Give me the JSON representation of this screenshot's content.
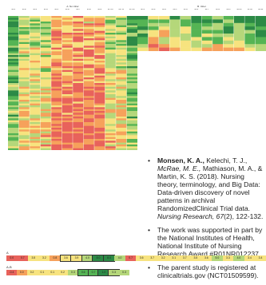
{
  "panel_a": {
    "title": "A. No Ulcer",
    "headers": [
      "MH1",
      "MH2",
      "MH3",
      "MH4",
      "MH5",
      "MH6",
      "MH7",
      "MH8",
      "MH9",
      "MH 10",
      "MH 11",
      "MH 12"
    ],
    "row_count": 72
  },
  "panel_b": {
    "title": "B. Ulcer",
    "headers": [
      "MH1",
      "MH2",
      "MH3",
      "MH4",
      "MH5",
      "MH6",
      "MH7",
      "MH8",
      "MH9",
      "MH10",
      "MH11",
      "MH12"
    ],
    "row_count": 10
  },
  "colors": {
    "red": "#e8625b",
    "orange": "#f6a15b",
    "yellow": "#f7e37f",
    "light_green": "#b5d77a",
    "green": "#55b454",
    "dark_green": "#2c8a46"
  },
  "bullets": [
    {
      "author_bold": "Monsen, K. A.,",
      "text_1": " Kelechi, T. J., ",
      "author_italic": "McRae, M. E.,",
      "text_2": " Mathiason, M. A., & Martin, K. S. (2018). Nursing theory, terminology, and Big Data: Data-driven discovery of novel patterns in archival RandomizedClinical Trial data. ",
      "journal": "Nursing Research, 67",
      "text_3": "(2), 122-132."
    },
    {
      "text": "The work was supported in part by the National Institutes of Health, National Institute of Nursing Research Award #R01NR012237."
    },
    {
      "text": "The parent study is registered at clinicaltrials.gov (NCT01509599)."
    }
  ],
  "legend_a": {
    "label": "A",
    "values": [
      "0.0",
      "0.7",
      "3.5",
      "3.2",
      "0.8",
      "3.6",
      "3.9",
      "4.0",
      "8.0",
      "8.0",
      "4.0",
      "0.7",
      "3.6",
      "3.7",
      "3.2",
      "3.1",
      "3.7",
      "3.5",
      "3.6",
      "5.0",
      "3.3",
      "4.0",
      "3.4",
      "3.4"
    ],
    "boxed_from": 5,
    "boxed_to": 9
  },
  "legend_ab": {
    "label": "A-B",
    "values": [
      "-0.4",
      "0.0",
      "0.2",
      "0.1",
      "0.1",
      "0.2",
      "0.3",
      "0.6",
      "0.7",
      "1.0",
      "0.3",
      "0.3"
    ],
    "boxed_from": 7,
    "boxed_to": 10
  }
}
